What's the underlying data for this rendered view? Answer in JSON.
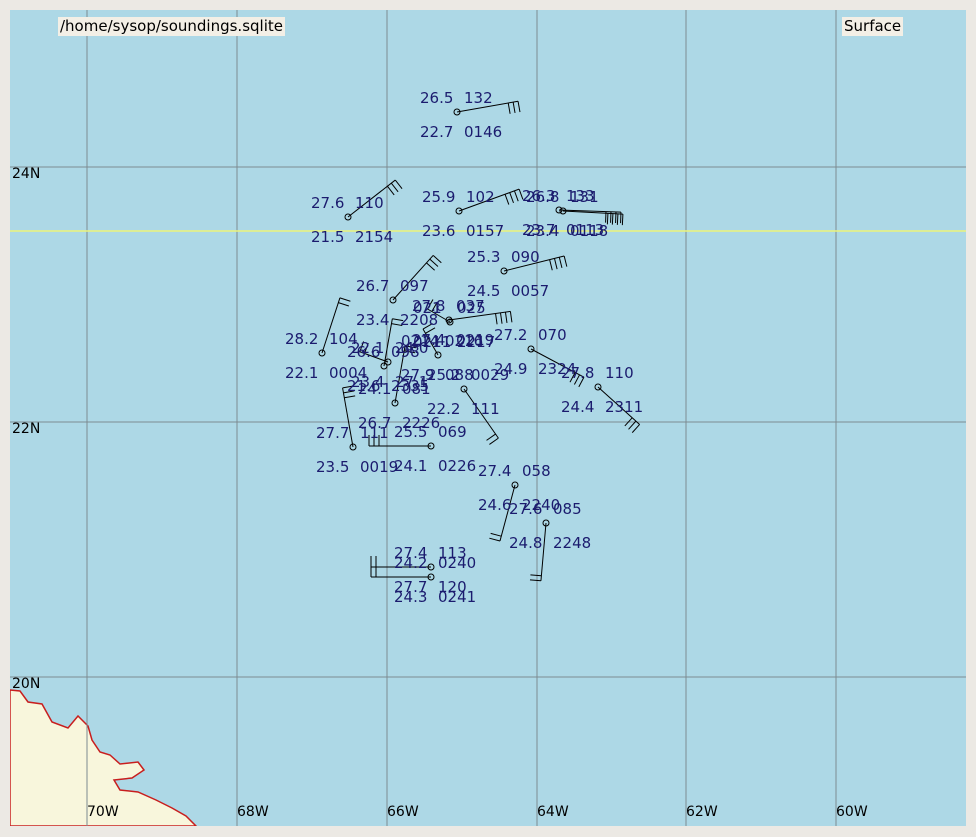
{
  "window": {
    "file_path": "/home/sysop/soundings.sqlite",
    "level": "Surface"
  },
  "map": {
    "lat_labels": [
      "24N",
      "22N",
      "20N"
    ],
    "lon_labels": [
      "70W",
      "68W",
      "66W",
      "64W",
      "62W",
      "60W"
    ],
    "colors": {
      "ocean": "#add8e6",
      "land": "#f8f6dc",
      "coast": "#c81e1e",
      "grid": "#7d8b91",
      "highlight_line": "#ecf47a",
      "station_text": "#1b1b6e",
      "barb": "#000000"
    }
  },
  "stations": [
    {
      "temp": "26.5",
      "pres": "132",
      "dew": "22.7",
      "time": "0146"
    },
    {
      "temp": "27.6",
      "pres": "110",
      "dew": "21.5",
      "time": "2154"
    },
    {
      "temp": "25.9",
      "pres": "102",
      "dew": "23.6",
      "time": "0157"
    },
    {
      "temp": "26.3",
      "pres": "133",
      "dew": "23.7",
      "time": "0113"
    },
    {
      "temp": "26.8",
      "pres": "131",
      "dew": "23.4",
      "time": "0118"
    },
    {
      "temp": "25.3",
      "pres": "090",
      "dew": "24.5",
      "time": "0057"
    },
    {
      "temp": "26.7",
      "pres": "097",
      "dew": "23.4",
      "time": "2208"
    },
    {
      "temp": "27.8",
      "pres": "037",
      "dew": "27.4",
      "time": "0219"
    },
    {
      "temp": "28.2",
      "pres": "104",
      "dew": "22.1",
      "time": "0004"
    },
    {
      "temp": "26.6",
      "pres": "098",
      "dew": "21.6",
      "time": "2335"
    },
    {
      "temp": "27.2",
      "pres": "070",
      "dew": "24.9",
      "time": "2324"
    },
    {
      "temp": "27.8",
      "pres": "110",
      "dew": "24.4",
      "time": "2311"
    },
    {
      "temp": "24.1",
      "pres": "081",
      "dew": "26.7",
      "time": "2226"
    },
    {
      "temp": "0214",
      "pres": "0216",
      "dew": "27.9",
      "time": "088"
    },
    {
      "temp": "25.2",
      "pres": "0029",
      "dew": "22.2",
      "time": "111"
    },
    {
      "temp": "27.7",
      "pres": "111",
      "dew": "23.5",
      "time": "0019"
    },
    {
      "temp": "25.5",
      "pres": "069",
      "dew": "24.1",
      "time": "0226"
    },
    {
      "temp": "27.4",
      "pres": "058",
      "dew": "24.6",
      "time": "2240"
    },
    {
      "temp": "27.6",
      "pres": "085",
      "dew": "24.8",
      "time": "2248"
    },
    {
      "temp": "27.4",
      "pres": "113",
      "dew": "27.7",
      "time": "120"
    },
    {
      "temp": "24.2",
      "pres": "0240",
      "dew": "24.3",
      "time": "0241"
    },
    {
      "temp": "021",
      "pres": "025",
      "dew": "0211",
      "time": "2217"
    },
    {
      "temp": "22.1",
      "pres": "24.0",
      "dew": "23.4",
      "time": "27.1"
    }
  ]
}
